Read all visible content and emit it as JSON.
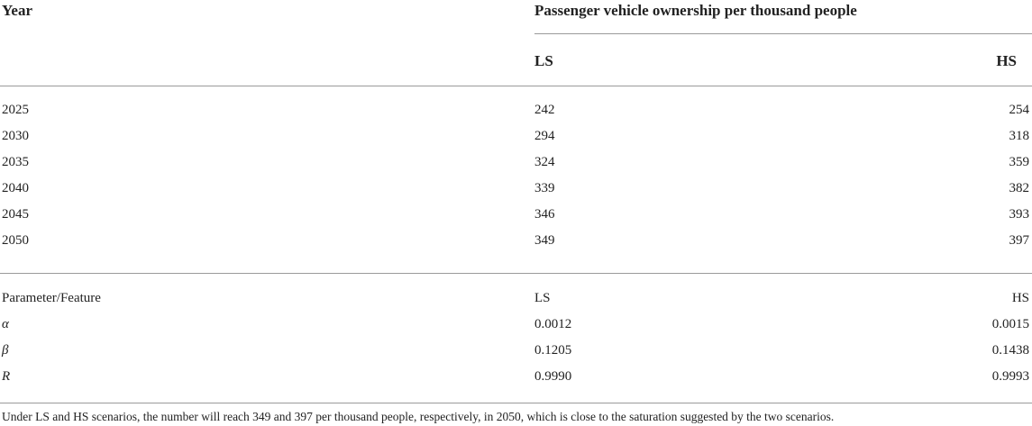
{
  "table": {
    "header": {
      "year": "Year",
      "group": "Passenger vehicle ownership per thousand people",
      "columns": [
        "LS",
        "HS"
      ]
    },
    "rows": [
      [
        "2025",
        "242",
        "254"
      ],
      [
        "2030",
        "294",
        "318"
      ],
      [
        "2035",
        "324",
        "359"
      ],
      [
        "2040",
        "339",
        "382"
      ],
      [
        "2045",
        "346",
        "393"
      ],
      [
        "2050",
        "349",
        "397"
      ]
    ],
    "parameters": {
      "header": [
        "Parameter/Feature",
        "LS",
        "HS"
      ],
      "rows": [
        [
          "α",
          "0.0012",
          "0.0015"
        ],
        [
          "β",
          "0.1205",
          "0.1438"
        ],
        [
          "R",
          "0.9990",
          "0.9993"
        ]
      ]
    }
  },
  "footnote": "Under LS and HS scenarios, the number will reach 349 and 397 per thousand people, respectively, in 2050, which is close to the saturation suggested by the two scenarios."
}
